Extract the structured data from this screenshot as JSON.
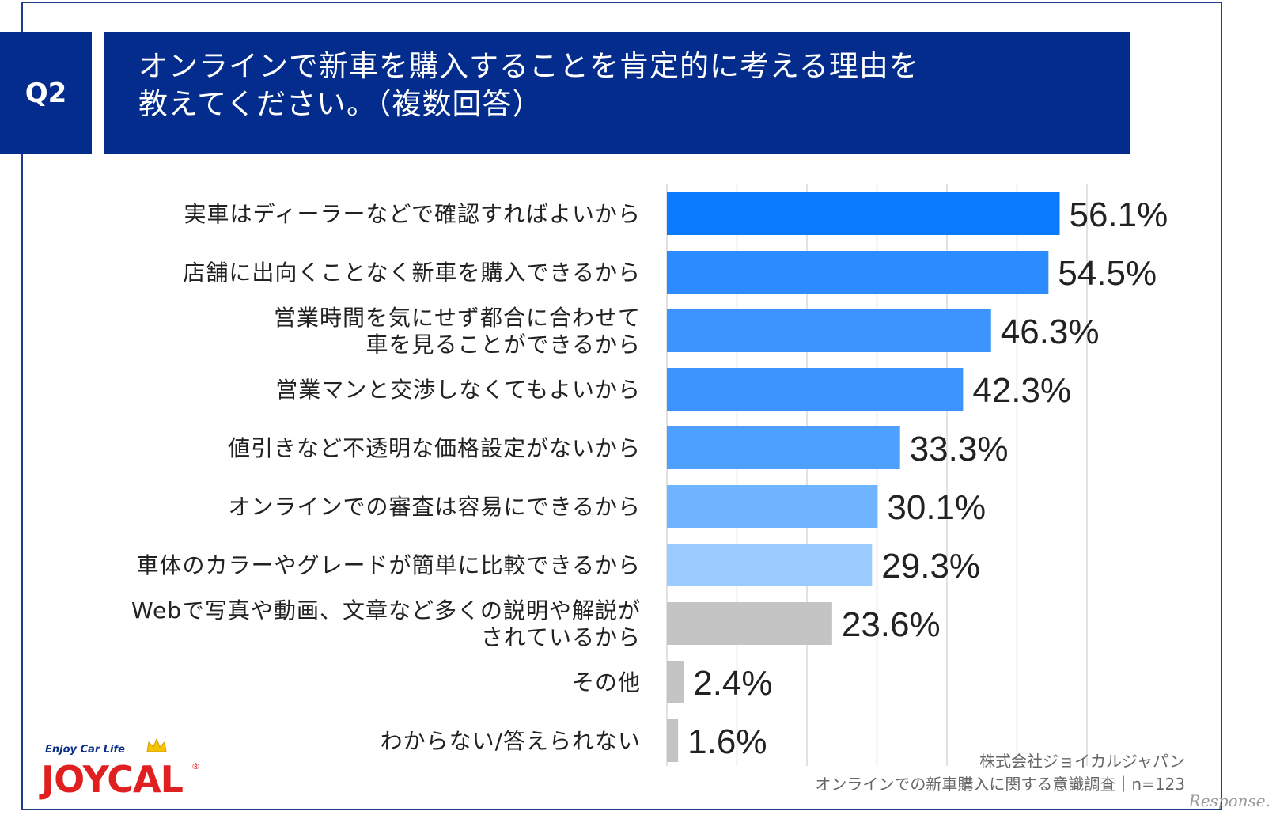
{
  "question": {
    "number": "Q2",
    "title_line1": "オンラインで新車を購入することを肯定的に考える理由を",
    "title_line2": "教えてください。（複数回答）"
  },
  "chart_data": {
    "type": "bar",
    "orientation": "horizontal",
    "title": "オンラインで新車を購入することを肯定的に考える理由を教えてください。（複数回答）",
    "categories": [
      [
        "実車はディーラーなどで確認すればよいから"
      ],
      [
        "店舗に出向くことなく新車を購入できるから"
      ],
      [
        "営業時間を気にせず都合に合わせて",
        "車を見ることができるから"
      ],
      [
        "営業マンと交渉しなくてもよいから"
      ],
      [
        "値引きなど不透明な価格設定がないから"
      ],
      [
        "オンラインでの審査は容易にできるから"
      ],
      [
        "車体のカラーやグレードが簡単に比較できるから"
      ],
      [
        "Webで写真や動画、文章など多くの説明や解説が",
        "されているから"
      ],
      [
        "その他"
      ],
      [
        "わからない/答えられない"
      ]
    ],
    "values": [
      56.1,
      54.5,
      46.3,
      42.3,
      33.3,
      30.1,
      29.3,
      23.6,
      2.4,
      1.6
    ],
    "value_labels": [
      "56.1%",
      "54.5%",
      "46.3%",
      "42.3%",
      "33.3%",
      "30.1%",
      "29.3%",
      "23.6%",
      "2.4%",
      "1.6%"
    ],
    "bar_colors": [
      "#0a7bff",
      "#2b8bff",
      "#3d94ff",
      "#3d94ff",
      "#4da0ff",
      "#6eb4ff",
      "#9ccbff",
      "#c4c4c4",
      "#c4c4c4",
      "#c4c4c4"
    ],
    "xlim": [
      0,
      70
    ],
    "grid": true,
    "grid_step": 10,
    "xlabel": "",
    "ylabel": ""
  },
  "credits": {
    "company": "株式会社ジョイカルジャパン",
    "survey": "オンラインでの新車購入に関する意識調査｜n=123"
  },
  "logo": {
    "tagline": "Enjoy Car Life",
    "wordmark": "JOYCAL",
    "reg": "®"
  },
  "watermark": "Response."
}
